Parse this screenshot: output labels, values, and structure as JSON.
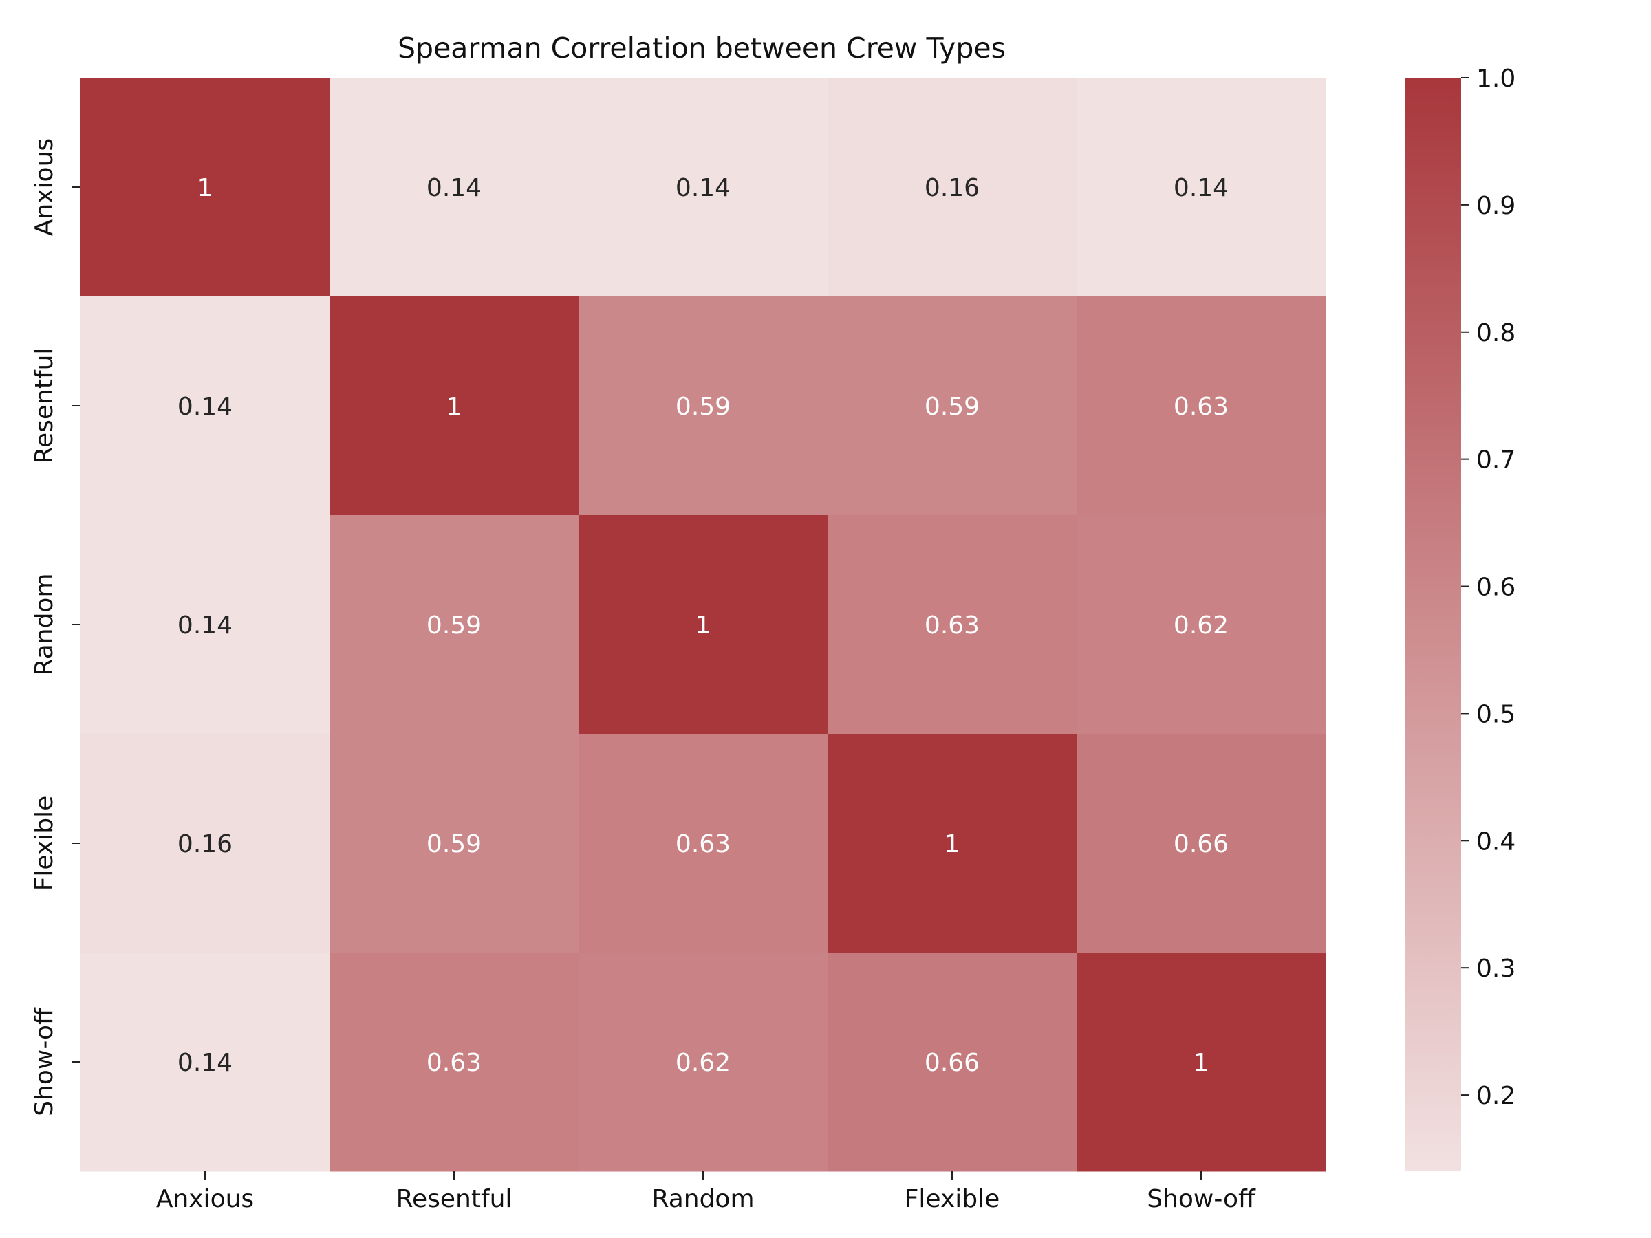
{
  "chart_data": {
    "type": "heatmap",
    "title": "Spearman Correlation between Crew Types",
    "x_categories": [
      "Anxious",
      "Resentful",
      "Random",
      "Flexible",
      "Show-off"
    ],
    "y_categories": [
      "Anxious",
      "Resentful",
      "Random",
      "Flexible",
      "Show-off"
    ],
    "values": [
      [
        1,
        0.14,
        0.14,
        0.16,
        0.14
      ],
      [
        0.14,
        1,
        0.59,
        0.59,
        0.63
      ],
      [
        0.14,
        0.59,
        1,
        0.63,
        0.62
      ],
      [
        0.16,
        0.59,
        0.63,
        1,
        0.66
      ],
      [
        0.14,
        0.63,
        0.62,
        0.66,
        1
      ]
    ],
    "cell_labels": [
      [
        "1",
        "0.14",
        "0.14",
        "0.16",
        "0.14"
      ],
      [
        "0.14",
        "1",
        "0.59",
        "0.59",
        "0.63"
      ],
      [
        "0.14",
        "0.59",
        "1",
        "0.63",
        "0.62"
      ],
      [
        "0.16",
        "0.59",
        "0.63",
        "1",
        "0.66"
      ],
      [
        "0.14",
        "0.63",
        "0.62",
        "0.66",
        "1"
      ]
    ],
    "colorbar": {
      "min": 0.14,
      "max": 1.0,
      "ticks": [
        0.2,
        0.3,
        0.4,
        0.5,
        0.6,
        0.7,
        0.8,
        0.9,
        1.0
      ],
      "tick_labels": [
        "0.2",
        "0.3",
        "0.4",
        "0.5",
        "0.6",
        "0.7",
        "0.8",
        "0.9",
        "1.0"
      ],
      "color_low": "#f2e1e1",
      "color_high": "#a8373c"
    },
    "annotation_colors": {
      "on_light": "#262626",
      "on_dark": "#ffffff"
    },
    "grid": false,
    "legend": "colorbar-right"
  }
}
